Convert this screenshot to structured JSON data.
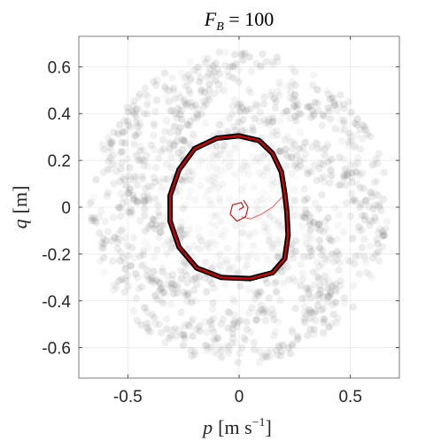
{
  "chart_data": {
    "type": "scatter",
    "title_main": "F",
    "title_sub": "B",
    "title_rest": " = 100",
    "xlabel_var": "p",
    "xlabel_unit_pre": "[m s",
    "xlabel_exp": "−1",
    "xlabel_unit_post": "]",
    "ylabel_var": "q",
    "ylabel_unit": "[m]",
    "xlim": [
      -0.72,
      0.72
    ],
    "ylim": [
      -0.73,
      0.73
    ],
    "xticks": [
      {
        "v": -0.5,
        "label": "-0.5"
      },
      {
        "v": 0,
        "label": "0"
      },
      {
        "v": 0.5,
        "label": "0.5"
      }
    ],
    "yticks": [
      {
        "v": 0.6,
        "label": "0.6"
      },
      {
        "v": 0.4,
        "label": "0.4"
      },
      {
        "v": 0.2,
        "label": "0.2"
      },
      {
        "v": 0,
        "label": "0"
      },
      {
        "v": -0.2,
        "label": "-0.2"
      },
      {
        "v": -0.4,
        "label": "-0.4"
      },
      {
        "v": -0.6,
        "label": "-0.6"
      }
    ],
    "grid": true,
    "scatter_color": "#707070",
    "limit_cycle_outline_color": "#000000",
    "limit_cycle_color": "#dd0000",
    "transient_color": "#ff6666",
    "limit_cycle": [
      [
        0.0,
        0.305
      ],
      [
        -0.1,
        0.295
      ],
      [
        -0.2,
        0.25
      ],
      [
        -0.27,
        0.16
      ],
      [
        -0.31,
        0.05
      ],
      [
        -0.31,
        -0.06
      ],
      [
        -0.27,
        -0.17
      ],
      [
        -0.19,
        -0.26
      ],
      [
        -0.08,
        -0.3
      ],
      [
        0.05,
        -0.305
      ],
      [
        0.15,
        -0.28
      ],
      [
        0.205,
        -0.22
      ],
      [
        0.22,
        -0.12
      ],
      [
        0.215,
        -0.02
      ],
      [
        0.205,
        0.06
      ],
      [
        0.19,
        0.15
      ],
      [
        0.15,
        0.23
      ],
      [
        0.09,
        0.285
      ],
      [
        0.0,
        0.305
      ]
    ],
    "transient": [
      [
        0.02,
        0.03
      ],
      [
        0.04,
        0.0
      ],
      [
        0.03,
        -0.04
      ],
      [
        -0.01,
        -0.06
      ],
      [
        -0.04,
        -0.03
      ],
      [
        -0.03,
        0.01
      ],
      [
        0.01,
        0.02
      ],
      [
        0.02,
        0.0
      ],
      [
        0.0,
        -0.01
      ]
    ],
    "transient_branch": [
      [
        0.01,
        -0.04
      ],
      [
        0.05,
        -0.05
      ],
      [
        0.1,
        -0.03
      ],
      [
        0.15,
        0.0
      ],
      [
        0.19,
        0.04
      ],
      [
        0.21,
        0.07
      ]
    ]
  }
}
